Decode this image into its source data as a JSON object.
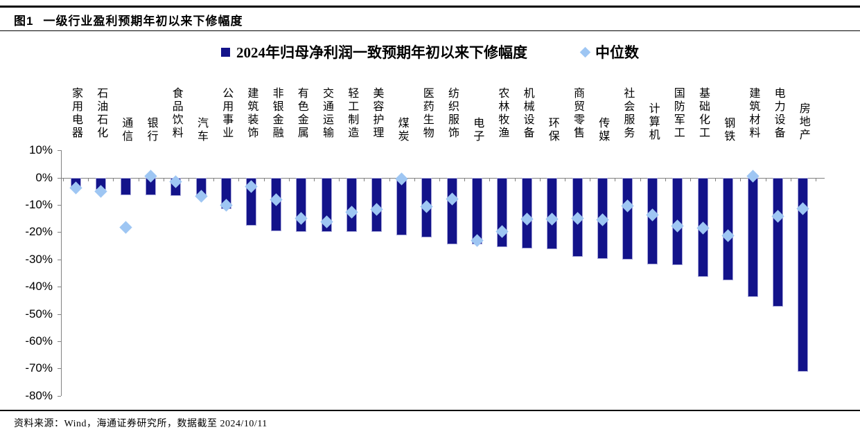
{
  "figure": {
    "label": "图1",
    "title": "一级行业盈利预期年初以来下修幅度"
  },
  "legend": {
    "bar_series": "2024年归母净利润一致预期年初以来下修幅度",
    "median_series": "中位数"
  },
  "source": "资料来源：Wind，海通证券研究所，数据截至 2024/10/11",
  "colors": {
    "bar_fill": "#13138A",
    "bar_border": "#A6A6D9",
    "median_fill": "#9EC6F3",
    "axis": "#808080",
    "text": "#000000"
  },
  "chart_data": {
    "type": "bar",
    "title": "2024年归母净利润一致预期年初以来下修幅度",
    "unit": "%",
    "ylim": [
      -80,
      10
    ],
    "grid": "off",
    "legend_position": "top-center",
    "y_tick_labels": [
      "10%",
      "0%",
      "-10%",
      "-20%",
      "-30%",
      "-40%",
      "-50%",
      "-60%",
      "-70%",
      "-80%"
    ],
    "y_tick_values": [
      10,
      0,
      -10,
      -20,
      -30,
      -40,
      -50,
      -60,
      -70,
      -80
    ],
    "categories": [
      "家用电器",
      "石油石化",
      "通信",
      "银行",
      "食品饮料",
      "汽车",
      "公用事业",
      "建筑装饰",
      "非银金融",
      "有色金属",
      "交通运输",
      "轻工制造",
      "美容护理",
      "煤炭",
      "医药生物",
      "纺织服饰",
      "电子",
      "农林牧渔",
      "机械设备",
      "环保",
      "商贸零售",
      "传媒",
      "社会服务",
      "计算机",
      "国防军工",
      "基础化工",
      "钢铁",
      "建筑材料",
      "电力设备",
      "房地产"
    ],
    "series": [
      {
        "name": "2024年归母净利润一致预期年初以来下修幅度",
        "type": "bar",
        "values": [
          -4.3,
          -4.5,
          -6.4,
          -6.5,
          -6.6,
          -7.0,
          -11.5,
          -17.7,
          -19.6,
          -19.8,
          -19.8,
          -19.8,
          -20.0,
          -21.1,
          -21.9,
          -24.4,
          -24.4,
          -25.5,
          -25.9,
          -26.3,
          -29.1,
          -29.7,
          -30.0,
          -31.8,
          -32.1,
          -36.3,
          -37.7,
          -43.9,
          -47.4,
          -71.1
        ]
      },
      {
        "name": "中位数",
        "type": "scatter",
        "marker": "diamond",
        "values": [
          -3.7,
          -5.1,
          -18.4,
          0.6,
          -1.4,
          -6.8,
          -10.1,
          -3.3,
          -8.2,
          -15.1,
          -16.2,
          -12.8,
          -11.7,
          -0.6,
          -10.6,
          -7.8,
          -23.2,
          -19.8,
          -15.2,
          -15.2,
          -14.9,
          -15.6,
          -10.3,
          -13.7,
          -17.7,
          -18.6,
          -21.3,
          0.4,
          -14.1,
          -11.3
        ]
      }
    ]
  }
}
